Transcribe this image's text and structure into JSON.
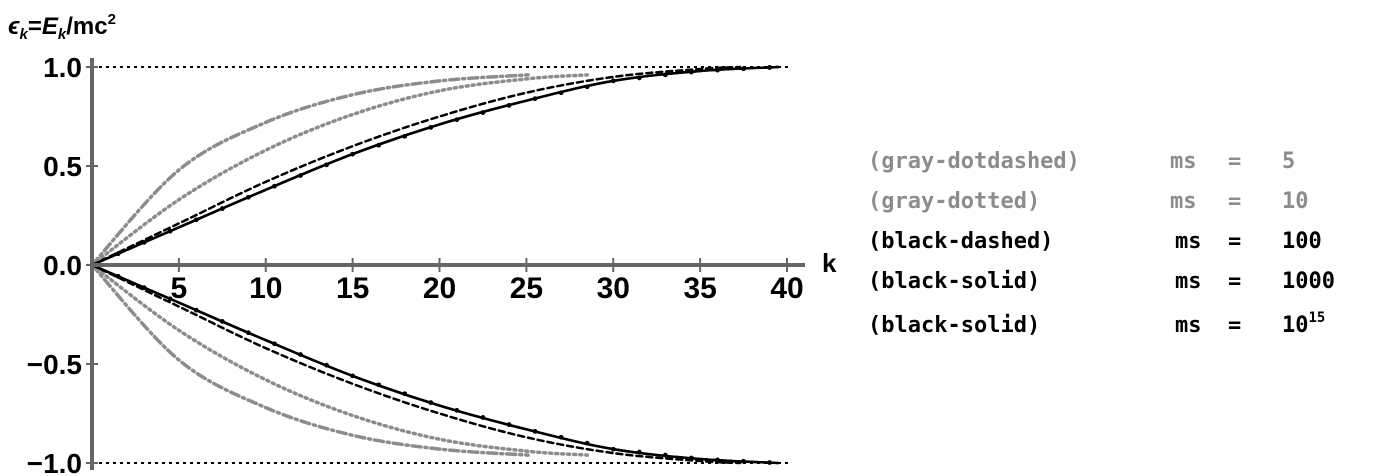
{
  "chart_data": {
    "type": "line",
    "ylabel": {
      "a": "ϵ",
      "asub": "k",
      "b": "=",
      "c": "E",
      "csub": "k",
      "d": "/mc",
      "dsup": "2"
    },
    "xlabel": "k",
    "xlim": [
      0,
      40
    ],
    "ylim": [
      -1.0,
      1.0
    ],
    "x_ticks": [
      "5",
      "10",
      "15",
      "20",
      "25",
      "30",
      "35",
      "40"
    ],
    "y_ticks": [
      "1.0",
      "0.5",
      "0.0",
      "−0.5",
      "−1.0"
    ],
    "reference_lines": [
      1.0,
      -1.0
    ],
    "series": [
      {
        "style": "gray-dotdashed",
        "k_max": 25.1,
        "points": [
          [
            0,
            0
          ],
          [
            5,
            0.48
          ],
          [
            10,
            0.72
          ],
          [
            15,
            0.86
          ],
          [
            20,
            0.93
          ],
          [
            25.1,
            0.96
          ]
        ]
      },
      {
        "style": "gray-dotted",
        "k_max": 28.5,
        "points": [
          [
            0,
            0
          ],
          [
            5,
            0.33
          ],
          [
            10,
            0.58
          ],
          [
            15,
            0.76
          ],
          [
            20,
            0.88
          ],
          [
            25,
            0.94
          ],
          [
            28.5,
            0.96
          ]
        ]
      },
      {
        "style": "black-dashed",
        "k_max": 37.3,
        "points": [
          [
            0,
            0
          ],
          [
            5,
            0.21
          ],
          [
            10,
            0.42
          ],
          [
            15,
            0.6
          ],
          [
            20,
            0.75
          ],
          [
            25,
            0.87
          ],
          [
            30,
            0.95
          ],
          [
            35,
            0.99
          ],
          [
            37.3,
            1.0
          ]
        ]
      },
      {
        "style": "black-solid",
        "k_max": 39.5,
        "points": [
          [
            0,
            0
          ],
          [
            5,
            0.19
          ],
          [
            10,
            0.38
          ],
          [
            15,
            0.56
          ],
          [
            20,
            0.71
          ],
          [
            25,
            0.83
          ],
          [
            30,
            0.93
          ],
          [
            35,
            0.98
          ],
          [
            39.5,
            1.0
          ]
        ]
      },
      {
        "style": "black-solid",
        "k_max": 39.5,
        "points": [
          [
            0,
            0
          ],
          [
            5,
            0.19
          ],
          [
            10,
            0.38
          ],
          [
            15,
            0.56
          ],
          [
            20,
            0.71
          ],
          [
            25,
            0.83
          ],
          [
            30,
            0.93
          ],
          [
            35,
            0.98
          ],
          [
            39.5,
            1.0
          ]
        ]
      }
    ],
    "legend": {
      "position": "right",
      "entries": [
        {
          "style": "(gray-dotdashed)",
          "ms_label": "ms",
          "eq": "=",
          "value": "5",
          "color": "#8c8c8c"
        },
        {
          "style": "(gray-dotted)",
          "ms_label": "ms",
          "eq": "=",
          "value": "10",
          "color": "#8c8c8c"
        },
        {
          "style": "(black-dashed)",
          "ms_label": "ms",
          "eq": "=",
          "value": "100",
          "color": "#000000"
        },
        {
          "style": "(black-solid)",
          "ms_label": "ms",
          "eq": "=",
          "value": "1000",
          "color": "#000000"
        },
        {
          "style": "(black-solid)",
          "ms_label": "ms",
          "eq": "=",
          "value": "10",
          "value_sup": "15",
          "color": "#000000"
        }
      ]
    },
    "colors": {
      "gray": "#8c8c8c",
      "black": "#000000",
      "axis": "#666666"
    }
  }
}
